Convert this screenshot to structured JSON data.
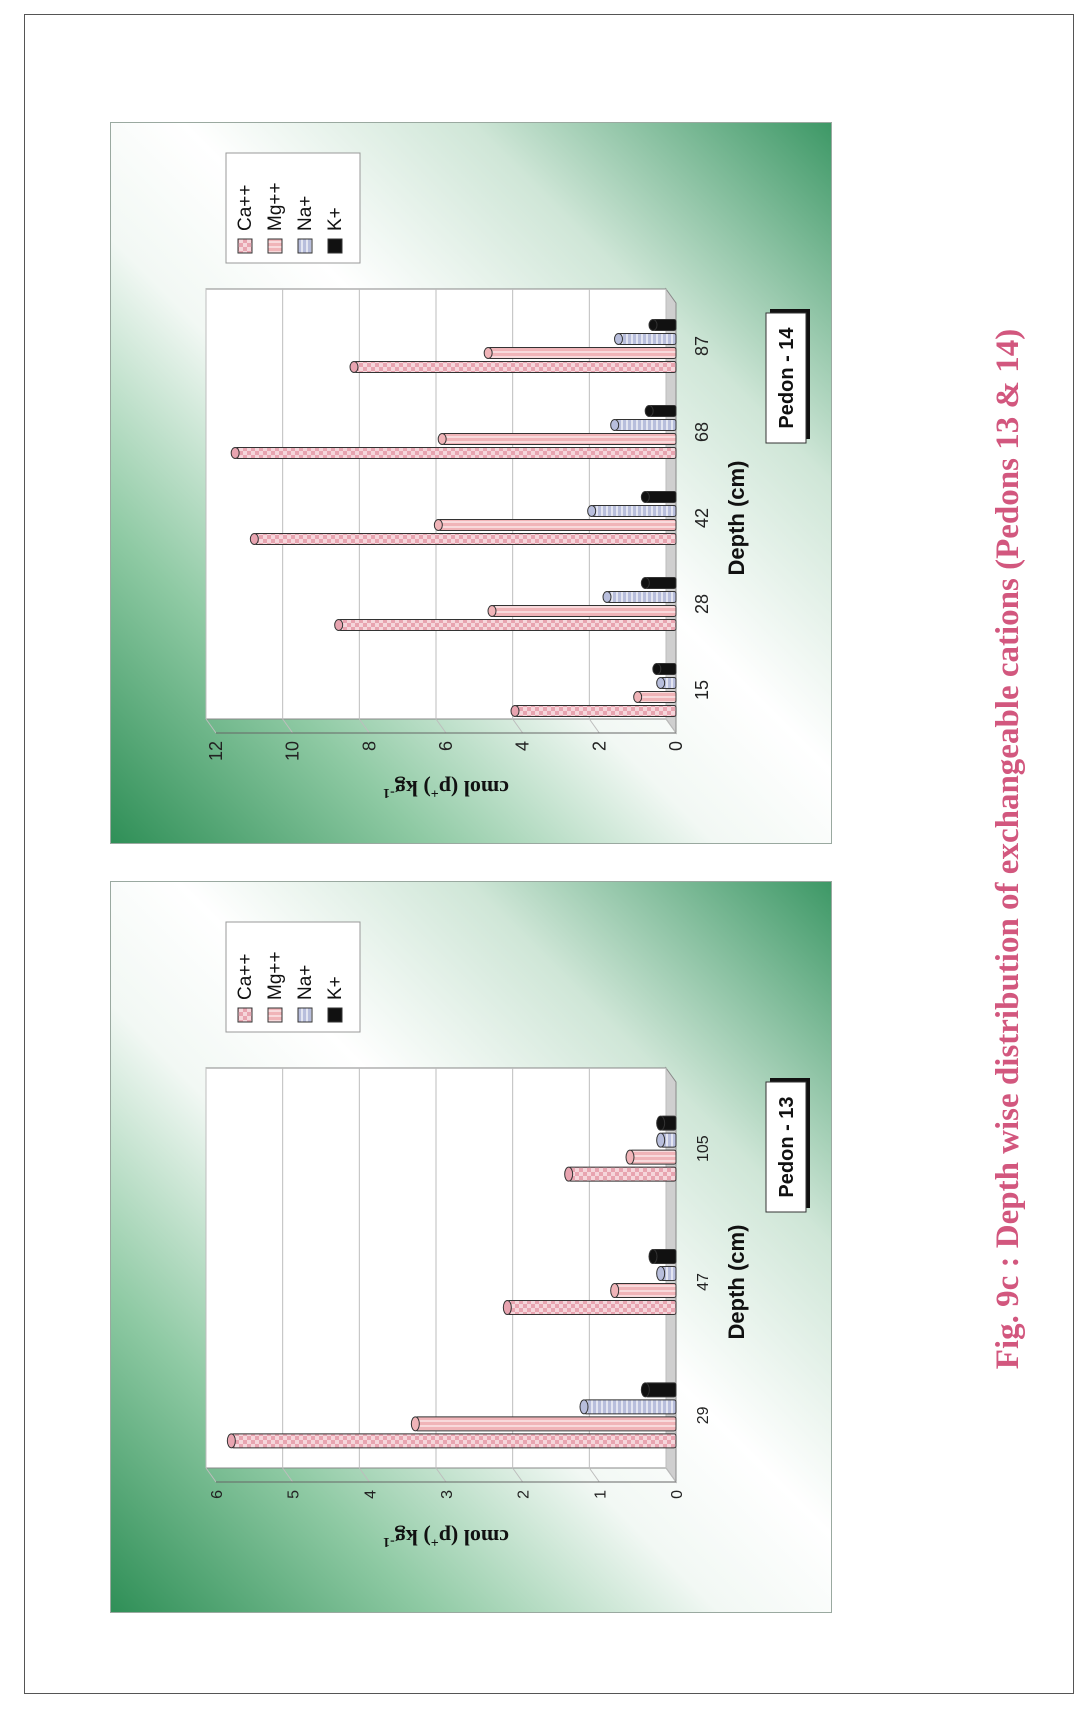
{
  "figure_caption": "Fig. 9c : Depth wise distribution of exchangeable cations (Pedons 13 & 14)",
  "colors": {
    "ca": "#e8a4b0",
    "mg": "#f0b4b8",
    "na": "#b8bedc",
    "k": "#111111",
    "plot_bg": "#ffffff",
    "grid": "#bdbdbd",
    "caption": "#d2577e"
  },
  "chart_data": [
    {
      "type": "bar",
      "pedon_label": "Pedon - 13",
      "xlabel": "Depth (cm)",
      "ylabel": "cmol (p+) kg-1",
      "ylabel_parts": {
        "main": "cmol (p",
        "sup1": "+",
        "mid": ") kg",
        "sup2": "-1"
      },
      "ylim": [
        0,
        6
      ],
      "yticks": [
        "0",
        "1",
        "2",
        "3",
        "4",
        "5",
        "6"
      ],
      "grid": true,
      "legend_position": "right",
      "categories": [
        "29",
        "47",
        "105"
      ],
      "series": [
        {
          "name": "Ca++",
          "values": [
            5.8,
            2.2,
            1.4
          ]
        },
        {
          "name": "Mg++",
          "values": [
            3.4,
            0.8,
            0.6
          ]
        },
        {
          "name": "Na+",
          "values": [
            1.2,
            0.2,
            0.2
          ]
        },
        {
          "name": "K+",
          "values": [
            0.4,
            0.3,
            0.2
          ]
        }
      ]
    },
    {
      "type": "bar",
      "pedon_label": "Pedon - 14",
      "xlabel": "Depth (cm)",
      "ylabel": "cmol (p+) kg-1",
      "ylabel_parts": {
        "main": "cmol (p",
        "sup1": "+",
        "mid": ") kg",
        "sup2": "-1"
      },
      "ylim": [
        0,
        12
      ],
      "yticks": [
        "0",
        "2",
        "4",
        "6",
        "8",
        "10",
        "12"
      ],
      "grid": true,
      "legend_position": "right",
      "categories": [
        "15",
        "28",
        "42",
        "68",
        "87"
      ],
      "series": [
        {
          "name": "Ca++",
          "values": [
            4.2,
            8.8,
            11.0,
            11.5,
            8.4
          ]
        },
        {
          "name": "Mg++",
          "values": [
            1.0,
            4.8,
            6.2,
            6.1,
            4.9
          ]
        },
        {
          "name": "Na+",
          "values": [
            0.4,
            1.8,
            2.2,
            1.6,
            1.5
          ]
        },
        {
          "name": "K+",
          "values": [
            0.5,
            0.8,
            0.8,
            0.7,
            0.6
          ]
        }
      ]
    }
  ]
}
